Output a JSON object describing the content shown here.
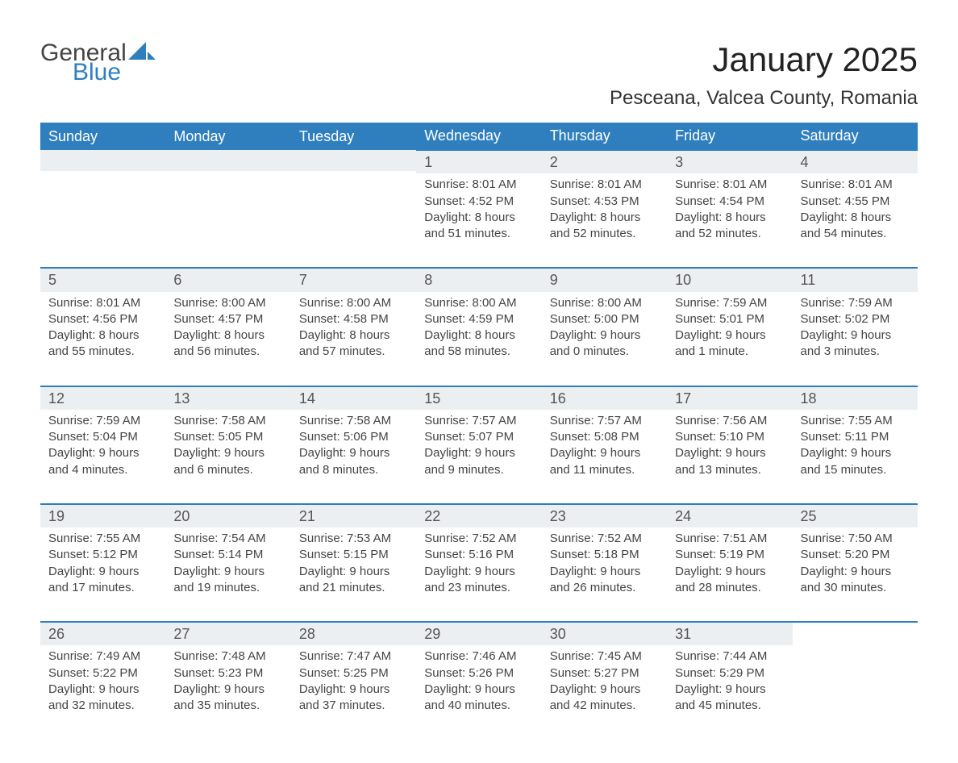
{
  "branding": {
    "logo_text_1": "General",
    "logo_text_2": "Blue",
    "logo_color_dark": "#444444",
    "logo_color_blue": "#2f7fbf"
  },
  "header": {
    "month_title": "January 2025",
    "location": "Pesceana, Valcea County, Romania"
  },
  "styling": {
    "header_bg": "#2f7fbf",
    "header_text": "#ffffff",
    "daynum_bg": "#eceff1",
    "daynum_text": "#555555",
    "body_text": "#444444",
    "row_divider": "#2f7fbf",
    "page_bg": "#ffffff",
    "font_family": "Arial",
    "month_title_size_pt": 32,
    "location_size_pt": 18,
    "weekday_size_pt": 14,
    "daynum_size_pt": 14,
    "body_size_pt": 11
  },
  "calendar": {
    "weekdays": [
      "Sunday",
      "Monday",
      "Tuesday",
      "Wednesday",
      "Thursday",
      "Friday",
      "Saturday"
    ],
    "leading_blanks": 3,
    "trailing_blanks": 1,
    "days": [
      {
        "n": "1",
        "sunrise": "Sunrise: 8:01 AM",
        "sunset": "Sunset: 4:52 PM",
        "day1": "Daylight: 8 hours",
        "day2": "and 51 minutes."
      },
      {
        "n": "2",
        "sunrise": "Sunrise: 8:01 AM",
        "sunset": "Sunset: 4:53 PM",
        "day1": "Daylight: 8 hours",
        "day2": "and 52 minutes."
      },
      {
        "n": "3",
        "sunrise": "Sunrise: 8:01 AM",
        "sunset": "Sunset: 4:54 PM",
        "day1": "Daylight: 8 hours",
        "day2": "and 52 minutes."
      },
      {
        "n": "4",
        "sunrise": "Sunrise: 8:01 AM",
        "sunset": "Sunset: 4:55 PM",
        "day1": "Daylight: 8 hours",
        "day2": "and 54 minutes."
      },
      {
        "n": "5",
        "sunrise": "Sunrise: 8:01 AM",
        "sunset": "Sunset: 4:56 PM",
        "day1": "Daylight: 8 hours",
        "day2": "and 55 minutes."
      },
      {
        "n": "6",
        "sunrise": "Sunrise: 8:00 AM",
        "sunset": "Sunset: 4:57 PM",
        "day1": "Daylight: 8 hours",
        "day2": "and 56 minutes."
      },
      {
        "n": "7",
        "sunrise": "Sunrise: 8:00 AM",
        "sunset": "Sunset: 4:58 PM",
        "day1": "Daylight: 8 hours",
        "day2": "and 57 minutes."
      },
      {
        "n": "8",
        "sunrise": "Sunrise: 8:00 AM",
        "sunset": "Sunset: 4:59 PM",
        "day1": "Daylight: 8 hours",
        "day2": "and 58 minutes."
      },
      {
        "n": "9",
        "sunrise": "Sunrise: 8:00 AM",
        "sunset": "Sunset: 5:00 PM",
        "day1": "Daylight: 9 hours",
        "day2": "and 0 minutes."
      },
      {
        "n": "10",
        "sunrise": "Sunrise: 7:59 AM",
        "sunset": "Sunset: 5:01 PM",
        "day1": "Daylight: 9 hours",
        "day2": "and 1 minute."
      },
      {
        "n": "11",
        "sunrise": "Sunrise: 7:59 AM",
        "sunset": "Sunset: 5:02 PM",
        "day1": "Daylight: 9 hours",
        "day2": "and 3 minutes."
      },
      {
        "n": "12",
        "sunrise": "Sunrise: 7:59 AM",
        "sunset": "Sunset: 5:04 PM",
        "day1": "Daylight: 9 hours",
        "day2": "and 4 minutes."
      },
      {
        "n": "13",
        "sunrise": "Sunrise: 7:58 AM",
        "sunset": "Sunset: 5:05 PM",
        "day1": "Daylight: 9 hours",
        "day2": "and 6 minutes."
      },
      {
        "n": "14",
        "sunrise": "Sunrise: 7:58 AM",
        "sunset": "Sunset: 5:06 PM",
        "day1": "Daylight: 9 hours",
        "day2": "and 8 minutes."
      },
      {
        "n": "15",
        "sunrise": "Sunrise: 7:57 AM",
        "sunset": "Sunset: 5:07 PM",
        "day1": "Daylight: 9 hours",
        "day2": "and 9 minutes."
      },
      {
        "n": "16",
        "sunrise": "Sunrise: 7:57 AM",
        "sunset": "Sunset: 5:08 PM",
        "day1": "Daylight: 9 hours",
        "day2": "and 11 minutes."
      },
      {
        "n": "17",
        "sunrise": "Sunrise: 7:56 AM",
        "sunset": "Sunset: 5:10 PM",
        "day1": "Daylight: 9 hours",
        "day2": "and 13 minutes."
      },
      {
        "n": "18",
        "sunrise": "Sunrise: 7:55 AM",
        "sunset": "Sunset: 5:11 PM",
        "day1": "Daylight: 9 hours",
        "day2": "and 15 minutes."
      },
      {
        "n": "19",
        "sunrise": "Sunrise: 7:55 AM",
        "sunset": "Sunset: 5:12 PM",
        "day1": "Daylight: 9 hours",
        "day2": "and 17 minutes."
      },
      {
        "n": "20",
        "sunrise": "Sunrise: 7:54 AM",
        "sunset": "Sunset: 5:14 PM",
        "day1": "Daylight: 9 hours",
        "day2": "and 19 minutes."
      },
      {
        "n": "21",
        "sunrise": "Sunrise: 7:53 AM",
        "sunset": "Sunset: 5:15 PM",
        "day1": "Daylight: 9 hours",
        "day2": "and 21 minutes."
      },
      {
        "n": "22",
        "sunrise": "Sunrise: 7:52 AM",
        "sunset": "Sunset: 5:16 PM",
        "day1": "Daylight: 9 hours",
        "day2": "and 23 minutes."
      },
      {
        "n": "23",
        "sunrise": "Sunrise: 7:52 AM",
        "sunset": "Sunset: 5:18 PM",
        "day1": "Daylight: 9 hours",
        "day2": "and 26 minutes."
      },
      {
        "n": "24",
        "sunrise": "Sunrise: 7:51 AM",
        "sunset": "Sunset: 5:19 PM",
        "day1": "Daylight: 9 hours",
        "day2": "and 28 minutes."
      },
      {
        "n": "25",
        "sunrise": "Sunrise: 7:50 AM",
        "sunset": "Sunset: 5:20 PM",
        "day1": "Daylight: 9 hours",
        "day2": "and 30 minutes."
      },
      {
        "n": "26",
        "sunrise": "Sunrise: 7:49 AM",
        "sunset": "Sunset: 5:22 PM",
        "day1": "Daylight: 9 hours",
        "day2": "and 32 minutes."
      },
      {
        "n": "27",
        "sunrise": "Sunrise: 7:48 AM",
        "sunset": "Sunset: 5:23 PM",
        "day1": "Daylight: 9 hours",
        "day2": "and 35 minutes."
      },
      {
        "n": "28",
        "sunrise": "Sunrise: 7:47 AM",
        "sunset": "Sunset: 5:25 PM",
        "day1": "Daylight: 9 hours",
        "day2": "and 37 minutes."
      },
      {
        "n": "29",
        "sunrise": "Sunrise: 7:46 AM",
        "sunset": "Sunset: 5:26 PM",
        "day1": "Daylight: 9 hours",
        "day2": "and 40 minutes."
      },
      {
        "n": "30",
        "sunrise": "Sunrise: 7:45 AM",
        "sunset": "Sunset: 5:27 PM",
        "day1": "Daylight: 9 hours",
        "day2": "and 42 minutes."
      },
      {
        "n": "31",
        "sunrise": "Sunrise: 7:44 AM",
        "sunset": "Sunset: 5:29 PM",
        "day1": "Daylight: 9 hours",
        "day2": "and 45 minutes."
      }
    ]
  }
}
